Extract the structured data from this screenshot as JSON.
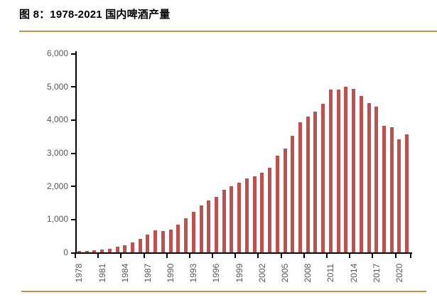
{
  "figure": {
    "title": "图 8：1978-2021 国内啤酒产量"
  },
  "colors": {
    "bar": "#C0504D",
    "divider": "#BF9343",
    "axis": "#000000",
    "tick_label": "#595959",
    "title_text": "#000000",
    "background": "#FFFFFF"
  },
  "chart_data": {
    "type": "bar",
    "title": "1978-2021 国内啤酒产量",
    "xlabel": "",
    "ylabel": "",
    "ylim": [
      0,
      6000
    ],
    "ytick_values": [
      0,
      1000,
      2000,
      3000,
      4000,
      5000,
      6000
    ],
    "ytick_labels": [
      "0",
      "1,000",
      "2,000",
      "3,000",
      "4,000",
      "5,000",
      "6,000"
    ],
    "xtick_interval": 3,
    "xtick_labels": [
      "1978",
      "1981",
      "1984",
      "1987",
      "1990",
      "1993",
      "1996",
      "1999",
      "2002",
      "2005",
      "2008",
      "2011",
      "2014",
      "2017",
      "2020"
    ],
    "grid": false,
    "legend": "none",
    "bar_color": "#C0504D",
    "categories": [
      1978,
      1979,
      1980,
      1981,
      1982,
      1983,
      1984,
      1985,
      1986,
      1987,
      1988,
      1989,
      1990,
      1991,
      1992,
      1993,
      1994,
      1995,
      1996,
      1997,
      1998,
      1999,
      2000,
      2001,
      2002,
      2003,
      2004,
      2005,
      2006,
      2007,
      2008,
      2009,
      2010,
      2011,
      2012,
      2013,
      2014,
      2015,
      2016,
      2017,
      2018,
      2019,
      2020,
      2021
    ],
    "values": [
      40.4,
      51.3,
      68.8,
      91.2,
      117.2,
      163.1,
      218.9,
      310.4,
      413.4,
      540.4,
      656.4,
      643.4,
      692.2,
      838.1,
      1021.0,
      1225.3,
      1415.0,
      1568.8,
      1681.9,
      1888.9,
      1987.7,
      2098.8,
      2231.3,
      2288.9,
      2402.7,
      2540.5,
      2910.1,
      3126.1,
      3515.2,
      3931.4,
      4103.1,
      4236.4,
      4483.3,
      4898.8,
      4902.0,
      4982.8,
      4921.9,
      4715.7,
      4506.4,
      4401.5,
      3812.2,
      3765.3,
      3411.1,
      3562.4
    ]
  }
}
